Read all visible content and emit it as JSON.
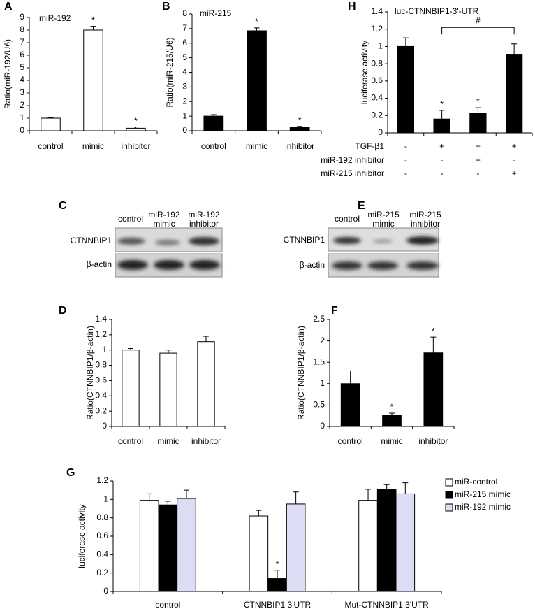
{
  "chart_data": [
    {
      "type": "bar",
      "panel": "A",
      "title": "miR-192",
      "y_label": "Ratio(miR-192/U6)",
      "categories": [
        "control",
        "mimic",
        "inhibitor"
      ],
      "series": [
        {
          "color": "#ffffff",
          "values": [
            1.0,
            8.0,
            0.2
          ],
          "errors": [
            0.05,
            0.3,
            0.1
          ],
          "significance": [
            null,
            "*",
            "*"
          ]
        }
      ],
      "ylim": [
        0,
        9
      ],
      "yticks": [
        0,
        1,
        2,
        3,
        4,
        5,
        6,
        7,
        8,
        9
      ]
    },
    {
      "type": "bar",
      "panel": "B",
      "title": "miR-215",
      "y_label": "Ratio(miR-215/U6)",
      "categories": [
        "control",
        "mimic",
        "inhibitor"
      ],
      "series": [
        {
          "color": "#000000",
          "values": [
            1.0,
            6.85,
            0.25
          ],
          "errors": [
            0.1,
            0.2,
            0.05
          ],
          "significance": [
            null,
            "*",
            "*"
          ]
        }
      ],
      "ylim": [
        0,
        8
      ],
      "yticks": [
        0,
        1,
        2,
        3,
        4,
        5,
        6,
        7,
        8
      ]
    },
    {
      "type": "bar",
      "panel": "H",
      "title": "luc-CTNNBIP1-3'-UTR",
      "y_label": "luciferase activity",
      "categories": [
        null,
        null,
        null,
        null
      ],
      "conditions": [
        {
          "label": "TGF-β1",
          "signs": [
            "-",
            "+",
            "+",
            "+"
          ]
        },
        {
          "label": "miR-192 inhibitor",
          "signs": [
            "-",
            "-",
            "+",
            "-"
          ]
        },
        {
          "label": "miR-215 inhibitor",
          "signs": [
            "-",
            "-",
            "-",
            "+"
          ]
        }
      ],
      "bracket_label": "#",
      "series": [
        {
          "color": "#000000",
          "values": [
            1.0,
            0.16,
            0.23,
            0.91
          ],
          "errors": [
            0.1,
            0.1,
            0.06,
            0.12
          ],
          "significance": [
            null,
            "*",
            "*",
            null
          ]
        }
      ],
      "ylim": [
        0,
        1.4
      ],
      "yticks": [
        0,
        0.2,
        0.4,
        0.6,
        0.8,
        1,
        1.2,
        1.4
      ]
    },
    {
      "type": "bar",
      "panel": "D",
      "y_label": "Ratio(CTNNBIP1/β-actin)",
      "categories": [
        "control",
        "mimic",
        "inhibitor"
      ],
      "series": [
        {
          "color": "#ffffff",
          "values": [
            1.0,
            0.96,
            1.11
          ],
          "errors": [
            0.02,
            0.04,
            0.07
          ],
          "significance": [
            null,
            null,
            null
          ]
        }
      ],
      "ylim": [
        0,
        1.4
      ],
      "yticks": [
        0,
        0.2,
        0.4,
        0.6,
        0.8,
        1,
        1.2,
        1.4
      ]
    },
    {
      "type": "bar",
      "panel": "F",
      "y_label": "Ratio(CTNNBIP1/β-actin)",
      "categories": [
        "control",
        "mimic",
        "inhibitor"
      ],
      "series": [
        {
          "color": "#000000",
          "values": [
            1.0,
            0.26,
            1.72
          ],
          "errors": [
            0.3,
            0.05,
            0.37
          ],
          "significance": [
            null,
            "*",
            "*"
          ]
        }
      ],
      "ylim": [
        0,
        2.5
      ],
      "yticks": [
        0,
        0.5,
        1,
        1.5,
        2,
        2.5
      ]
    },
    {
      "type": "bar",
      "panel": "G",
      "y_label": "luciferase activity",
      "categories": [
        "control",
        "CTNNBIP1 3'UTR",
        "Mut-CTNNBIP1 3'UTR"
      ],
      "series": [
        {
          "name": "miR-control",
          "color": "#ffffff",
          "values": [
            0.99,
            0.82,
            0.99
          ],
          "errors": [
            0.07,
            0.06,
            0.12
          ],
          "significance": [
            null,
            null,
            null
          ]
        },
        {
          "name": "miR-215 mimic",
          "color": "#000000",
          "values": [
            0.94,
            0.14,
            1.11
          ],
          "errors": [
            0.04,
            0.09,
            0.05
          ],
          "significance": [
            null,
            "*",
            null
          ]
        },
        {
          "name": "miR-192 mimic",
          "color": "#dcdcf5",
          "values": [
            1.01,
            0.95,
            1.06
          ],
          "errors": [
            0.09,
            0.13,
            0.12
          ],
          "significance": [
            null,
            null,
            null
          ]
        }
      ],
      "legend": "upper right",
      "ylim": [
        0,
        1.2
      ],
      "yticks": [
        0,
        0.2,
        0.4,
        0.6,
        0.8,
        1,
        1.2
      ]
    }
  ],
  "blots": [
    {
      "panel": "C",
      "columns": [
        [
          "control"
        ],
        [
          "miR-192",
          "mimic"
        ],
        [
          "miR-192",
          "inhibitor"
        ]
      ],
      "rows": [
        "CTNNBIP1",
        "β-actin"
      ]
    },
    {
      "panel": "E",
      "columns": [
        [
          "control"
        ],
        [
          "miR-215",
          "mimic"
        ],
        [
          "miR-215",
          "inhibitor"
        ]
      ],
      "rows": [
        "CTNNBIP1",
        "β-actin"
      ]
    }
  ]
}
